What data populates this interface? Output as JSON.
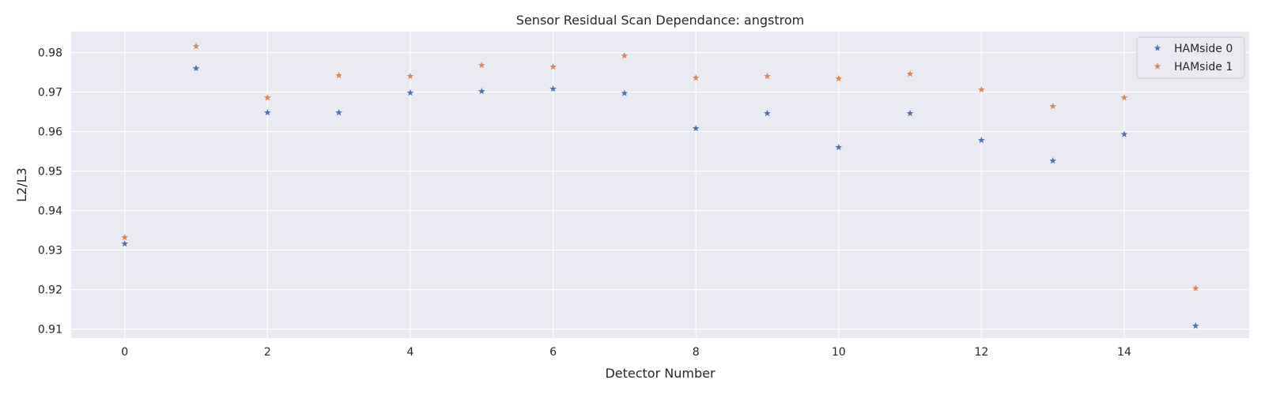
{
  "chart_data": {
    "type": "scatter",
    "title": "Sensor Residual Scan Dependance: angstrom",
    "xlabel": "Detector Number",
    "ylabel": "L2/L3",
    "xlim": [
      -0.75,
      15.75
    ],
    "ylim": [
      0.9077,
      0.9853
    ],
    "xticks": [
      0,
      2,
      4,
      6,
      8,
      10,
      12,
      14
    ],
    "yticks": [
      0.91,
      0.92,
      0.93,
      0.94,
      0.95,
      0.96,
      0.97,
      0.98
    ],
    "ytick_labels": [
      "0.91",
      "0.92",
      "0.93",
      "0.94",
      "0.95",
      "0.96",
      "0.97",
      "0.98"
    ],
    "grid": true,
    "legend_position": "top-right",
    "marker": "star",
    "series": [
      {
        "name": "HAMside 0",
        "color": "#4c72b0",
        "x": [
          0,
          1,
          2,
          3,
          4,
          5,
          6,
          7,
          8,
          9,
          10,
          11,
          12,
          13,
          14,
          15
        ],
        "y": [
          0.9316,
          0.976,
          0.9648,
          0.9648,
          0.9698,
          0.9702,
          0.9708,
          0.9697,
          0.9608,
          0.9646,
          0.956,
          0.9646,
          0.9578,
          0.9526,
          0.9593,
          0.9108
        ]
      },
      {
        "name": "HAMside 1",
        "color": "#dd8452",
        "x": [
          0,
          1,
          2,
          3,
          4,
          5,
          6,
          7,
          8,
          9,
          10,
          11,
          12,
          13,
          14,
          15
        ],
        "y": [
          0.9332,
          0.9816,
          0.9686,
          0.9742,
          0.974,
          0.9768,
          0.9764,
          0.9792,
          0.9736,
          0.974,
          0.9734,
          0.9746,
          0.9706,
          0.9664,
          0.9686,
          0.9203
        ]
      }
    ]
  }
}
